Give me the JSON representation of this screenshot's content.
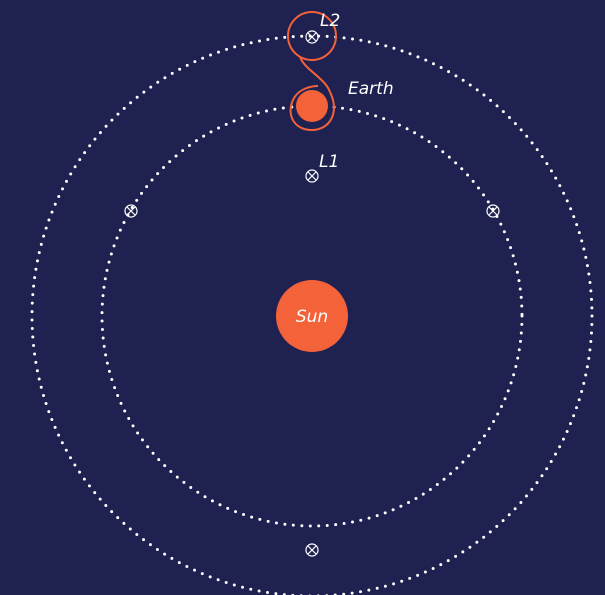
{
  "nodes": [
    {
      "label": "Sun"
    },
    {
      "label": "Earth"
    },
    {
      "label": "L1"
    },
    {
      "label": "L2"
    }
  ]
}
